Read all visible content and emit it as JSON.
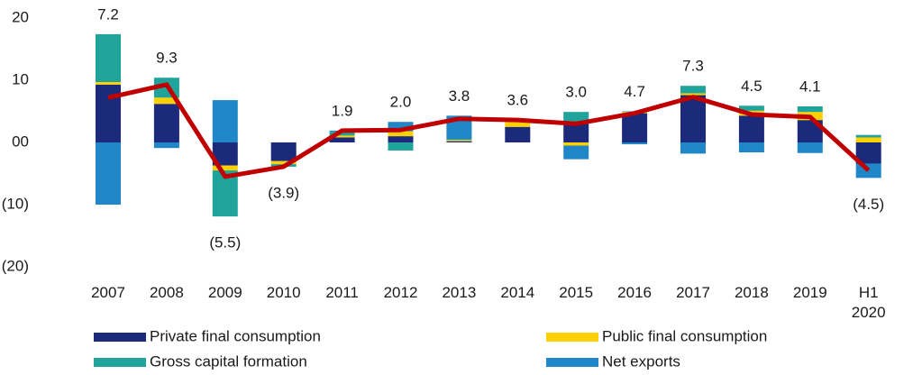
{
  "chart_data": {
    "type": "bar",
    "categories": [
      "2007",
      "2008",
      "2009",
      "2010",
      "2011",
      "2012",
      "2013",
      "2014",
      "2015",
      "2016",
      "2017",
      "2018",
      "2019",
      "H1 2020"
    ],
    "series": [
      {
        "name": "Private final consumption",
        "color": "#1b2a7a",
        "values": [
          9.3,
          6.2,
          -3.7,
          -3.0,
          0.8,
          1.0,
          0.2,
          2.5,
          3.0,
          4.7,
          7.6,
          4.3,
          3.6,
          -3.4
        ]
      },
      {
        "name": "Public final consumption",
        "color": "#ffd100",
        "values": [
          0.4,
          1.0,
          -0.8,
          -0.5,
          0.3,
          0.8,
          0.2,
          0.8,
          -0.5,
          0.2,
          0.3,
          0.8,
          1.3,
          0.8
        ]
      },
      {
        "name": "Gross capital formation",
        "color": "#1fa39a",
        "values": [
          7.7,
          3.2,
          -7.4,
          -0.4,
          0.6,
          -1.3,
          0.1,
          0.2,
          1.9,
          0.1,
          1.2,
          0.8,
          0.9,
          0.4
        ]
      },
      {
        "name": "Net exports",
        "color": "#1f86c8",
        "values": [
          -10.0,
          -0.9,
          6.8,
          0.0,
          0.2,
          1.5,
          3.8,
          0.1,
          -2.2,
          -0.3,
          -1.8,
          -1.6,
          -1.7,
          -2.3
        ]
      }
    ],
    "line_values": [
      7.2,
      9.3,
      -5.5,
      -3.9,
      1.9,
      2.0,
      3.8,
      3.6,
      3.0,
      4.7,
      7.3,
      4.5,
      4.1,
      -4.5
    ],
    "value_labels": [
      "7.2",
      "9.3",
      "(5.5)",
      "(3.9)",
      "1.9",
      "2.0",
      "3.8",
      "3.6",
      "3.0",
      "4.7",
      "7.3",
      "4.5",
      "4.1",
      "(4.5)"
    ],
    "line_color": "#c00000",
    "ylim": [
      -20,
      20
    ],
    "yticks": [
      20,
      10,
      {
        "value": 0,
        "label": "00"
      },
      {
        "value": -10,
        "label": "(10)"
      },
      {
        "value": -20,
        "label": "(20)"
      }
    ],
    "grid": false
  }
}
